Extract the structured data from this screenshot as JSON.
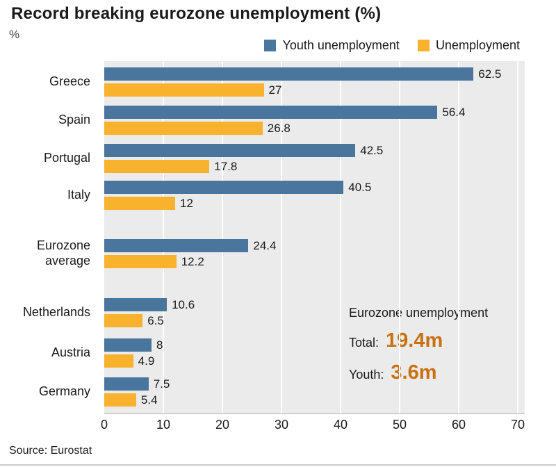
{
  "title": "Record breaking eurozone unemployment (%)",
  "unit_label": "%",
  "source": "Source: Eurostat",
  "legend": [
    {
      "label": "Youth unemployment"
    },
    {
      "label": "Unemployment"
    }
  ],
  "annotation": {
    "heading": "Eurozone unemployment",
    "total_label": "Total:",
    "total_value": "19.4m",
    "youth_label": "Youth:",
    "youth_value": "3.6m",
    "value_color": "#c9700f"
  },
  "chart_data": {
    "type": "bar",
    "orientation": "horizontal",
    "title": "Record breaking eurozone unemployment (%)",
    "xlabel": "%",
    "ylabel": "",
    "categories": [
      "Greece",
      "Spain",
      "Portugal",
      "Italy",
      "Eurozone average",
      "Netherlands",
      "Austria",
      "Germany"
    ],
    "series": [
      {
        "name": "Youth unemployment",
        "color": "#4a769e",
        "values": [
          62.5,
          56.4,
          42.5,
          40.5,
          24.4,
          10.6,
          8,
          7.5
        ]
      },
      {
        "name": "Unemployment",
        "color": "#f8b22d",
        "values": [
          27,
          26.8,
          17.8,
          12,
          12.2,
          6.5,
          4.9,
          5.4
        ]
      }
    ],
    "xlim": [
      0,
      70
    ],
    "xticks": [
      0,
      10,
      20,
      30,
      40,
      50,
      60,
      70
    ],
    "grid": true,
    "legend_position": "top-right",
    "plot_background": "#ebebeb"
  }
}
